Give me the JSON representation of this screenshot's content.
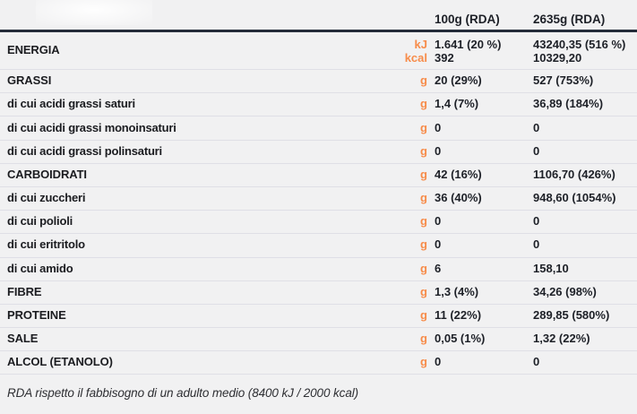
{
  "colors": {
    "accent": "#f78c4a",
    "background": "#f1f1f2",
    "header_rule": "#242c3a",
    "row_divider": "#dfdfe6",
    "text": "#1b1c20"
  },
  "table": {
    "column_headers": [
      "100g (RDA)",
      "2635g (RDA)"
    ],
    "energy": {
      "label": "ENERGIA",
      "units": [
        "kJ",
        "kcal"
      ],
      "per100g": [
        "1.641 (20 %)",
        "392"
      ],
      "per2635g": [
        "43240,35 (516 %)",
        "10329,20"
      ]
    },
    "rows": [
      {
        "style": "main",
        "label": "GRASSI",
        "unit": "g",
        "col1": "20 (29%)",
        "col2": "527 (753%)"
      },
      {
        "style": "sub",
        "label": "di cui acidi grassi saturi",
        "unit": "g",
        "col1": "1,4 (7%)",
        "col2": "36,89  (184%)"
      },
      {
        "style": "sub",
        "label": "di cui acidi grassi monoinsaturi",
        "unit": "g",
        "col1": "0",
        "col2": "0"
      },
      {
        "style": "sub",
        "label": "di cui acidi grassi polinsaturi",
        "unit": "g",
        "col1": "0",
        "col2": "0"
      },
      {
        "style": "main",
        "label": "CARBOIDRATI",
        "unit": "g",
        "col1": "42 (16%)",
        "col2": "1106,70 (426%)"
      },
      {
        "style": "sub",
        "label": "di cui zuccheri",
        "unit": "g",
        "col1": "36 (40%)",
        "col2": "948,60 (1054%)"
      },
      {
        "style": "sub",
        "label": "di cui polioli",
        "unit": "g",
        "col1": "0",
        "col2": "0"
      },
      {
        "style": "sub",
        "label": "di cui eritritolo",
        "unit": "g",
        "col1": "0",
        "col2": "0"
      },
      {
        "style": "sub",
        "label": "di cui amido",
        "unit": "g",
        "col1": "6",
        "col2": "158,10"
      },
      {
        "style": "main",
        "label": "FIBRE",
        "unit": "g",
        "col1": "1,3 (4%)",
        "col2": "34,26 (98%)"
      },
      {
        "style": "main",
        "label": "PROTEINE",
        "unit": "g",
        "col1": "11 (22%)",
        "col2": "289,85 (580%)"
      },
      {
        "style": "main",
        "label": "SALE",
        "unit": "g",
        "col1": "0,05 (1%)",
        "col2": "1,32 (22%)"
      },
      {
        "style": "main",
        "label": "ALCOL (ETANOLO)",
        "unit": "g",
        "col1": "0",
        "col2": "0"
      }
    ],
    "footnote": "RDA rispetto il fabbisogno di un adulto medio (8400 kJ / 2000 kcal)"
  }
}
